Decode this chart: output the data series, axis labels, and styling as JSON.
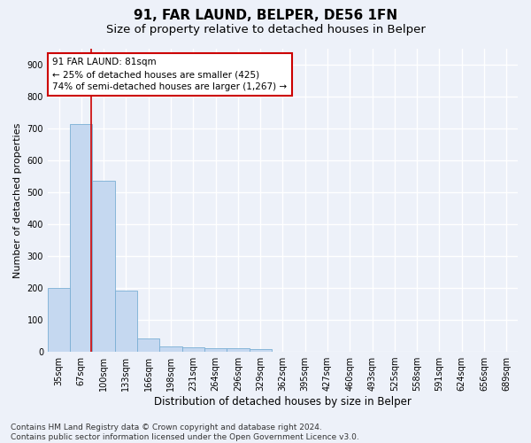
{
  "title1": "91, FAR LAUND, BELPER, DE56 1FN",
  "title2": "Size of property relative to detached houses in Belper",
  "xlabel": "Distribution of detached houses by size in Belper",
  "ylabel": "Number of detached properties",
  "categories": [
    "35sqm",
    "67sqm",
    "100sqm",
    "133sqm",
    "166sqm",
    "198sqm",
    "231sqm",
    "264sqm",
    "296sqm",
    "329sqm",
    "362sqm",
    "395sqm",
    "427sqm",
    "460sqm",
    "493sqm",
    "525sqm",
    "558sqm",
    "591sqm",
    "624sqm",
    "656sqm",
    "689sqm"
  ],
  "values": [
    201,
    713,
    535,
    193,
    42,
    18,
    14,
    12,
    10,
    8,
    0,
    0,
    0,
    0,
    0,
    0,
    0,
    0,
    0,
    0,
    0
  ],
  "bar_color": "#c5d8f0",
  "bar_edge_color": "#7aafd4",
  "red_line_x": 1.43,
  "annotation_text": "91 FAR LAUND: 81sqm\n← 25% of detached houses are smaller (425)\n74% of semi-detached houses are larger (1,267) →",
  "annotation_box_color": "#ffffff",
  "annotation_box_edge": "#cc0000",
  "ylim": [
    0,
    950
  ],
  "yticks": [
    0,
    100,
    200,
    300,
    400,
    500,
    600,
    700,
    800,
    900
  ],
  "footer": "Contains HM Land Registry data © Crown copyright and database right 2024.\nContains public sector information licensed under the Open Government Licence v3.0.",
  "bg_color": "#edf1f9",
  "grid_color": "#ffffff",
  "title1_fontsize": 11,
  "title2_fontsize": 9.5,
  "xlabel_fontsize": 8.5,
  "ylabel_fontsize": 8,
  "tick_fontsize": 7,
  "annotation_fontsize": 7.5,
  "footer_fontsize": 6.5
}
